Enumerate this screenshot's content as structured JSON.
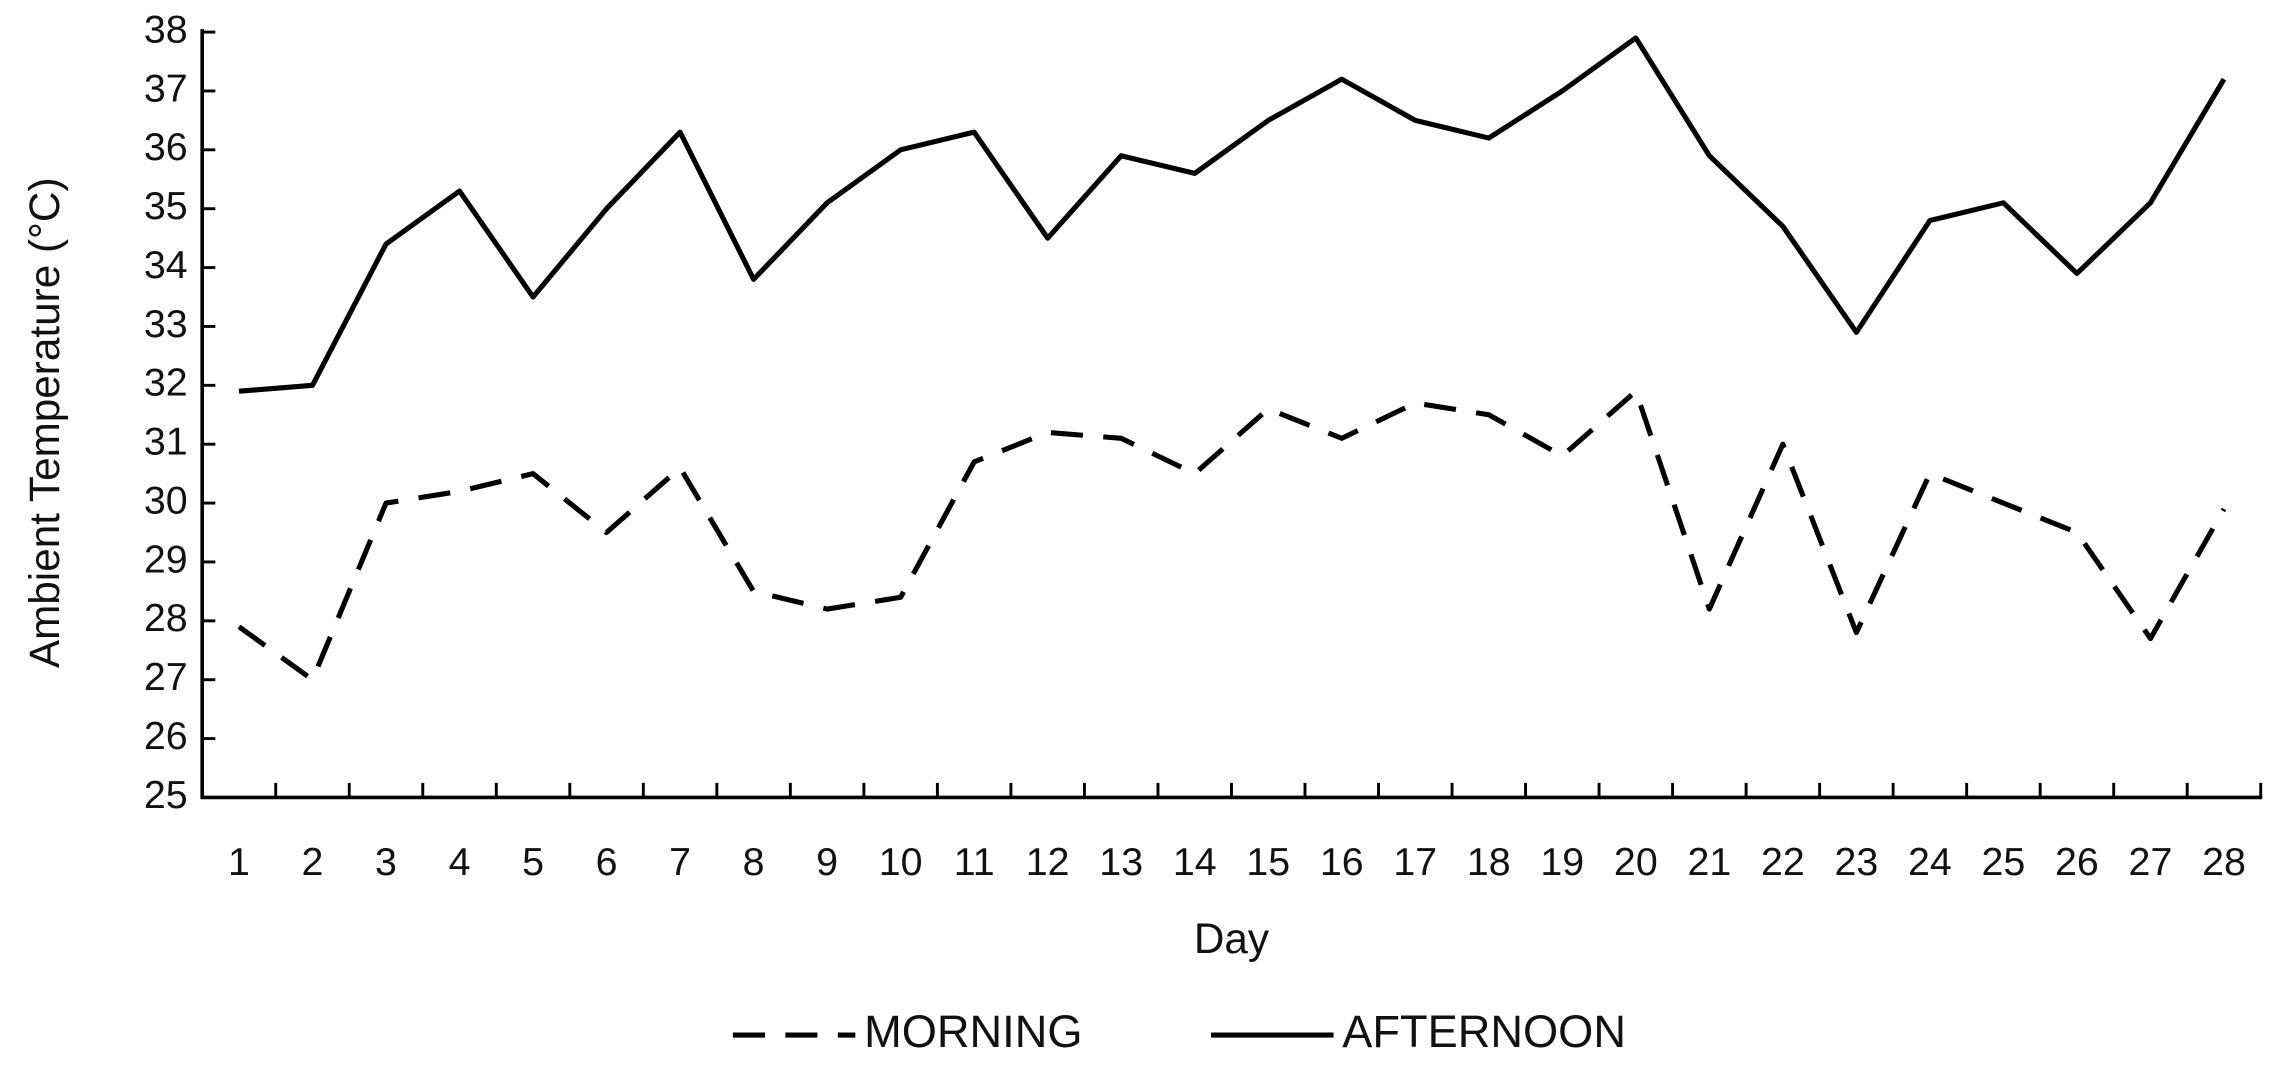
{
  "chart_data": {
    "type": "line",
    "xlabel": "Day",
    "ylabel": "Ambient Temperature (°C)",
    "categories": [
      "1",
      "2",
      "3",
      "4",
      "5",
      "6",
      "7",
      "8",
      "9",
      "10",
      "11",
      "12",
      "13",
      "14",
      "15",
      "16",
      "17",
      "18",
      "19",
      "20",
      "21",
      "22",
      "23",
      "24",
      "25",
      "26",
      "27",
      "28"
    ],
    "series": [
      {
        "name": "MORNING",
        "color": "#000000",
        "dashed": true,
        "values": [
          27.9,
          27.0,
          30.0,
          30.2,
          30.5,
          29.5,
          30.6,
          28.5,
          28.2,
          28.4,
          30.7,
          31.2,
          31.1,
          30.5,
          31.6,
          31.1,
          31.7,
          31.5,
          30.8,
          31.9,
          28.2,
          31.0,
          27.8,
          30.5,
          30.0,
          29.5,
          27.7,
          29.9
        ]
      },
      {
        "name": "AFTERNOON",
        "color": "#000000",
        "dashed": false,
        "values": [
          31.9,
          32.0,
          34.4,
          35.3,
          33.5,
          35.0,
          36.3,
          33.8,
          35.1,
          36.0,
          36.3,
          34.5,
          35.9,
          35.6,
          36.5,
          37.2,
          36.5,
          36.2,
          37.0,
          37.9,
          35.9,
          34.7,
          32.9,
          34.8,
          35.1,
          33.9,
          35.1,
          37.2
        ]
      }
    ],
    "ylim": [
      25,
      38
    ],
    "yticks": [
      25,
      26,
      27,
      28,
      29,
      30,
      31,
      32,
      33,
      34,
      35,
      36,
      37,
      38
    ],
    "grid": false,
    "legend": "bottom"
  }
}
